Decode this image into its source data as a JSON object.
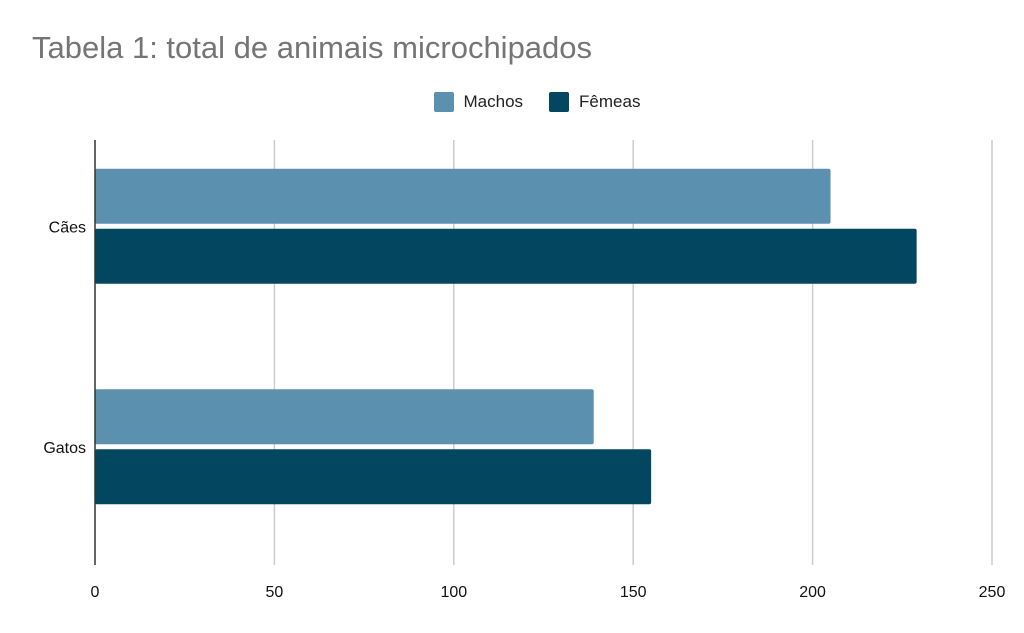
{
  "chart_data": {
    "type": "bar",
    "orientation": "horizontal",
    "title": "Tabela 1: total de animais microchipados",
    "categories": [
      "Cães",
      "Gatos"
    ],
    "series": [
      {
        "name": "Machos",
        "color": "#5b91ae",
        "values": [
          205,
          139
        ]
      },
      {
        "name": "Fêmeas",
        "color": "#02465f",
        "values": [
          229,
          155
        ]
      }
    ],
    "xlim": [
      0,
      250
    ],
    "xticks": [
      0,
      50,
      100,
      150,
      200,
      250
    ],
    "xlabel": "",
    "ylabel": "",
    "grid": true,
    "legend_position": "top"
  }
}
